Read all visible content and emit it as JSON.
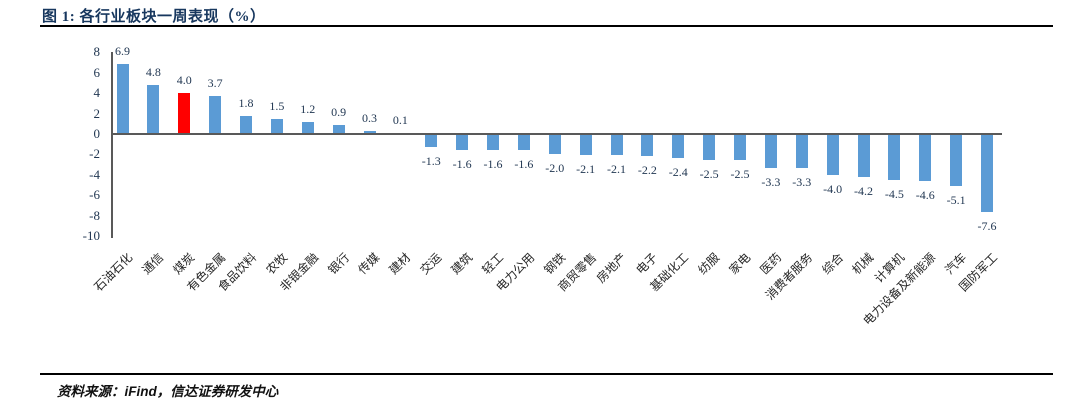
{
  "header": {
    "title": "图 1: 各行业板块一周表现（%）"
  },
  "footer": {
    "prefix": "资料来源：",
    "source": "iFind",
    "suffix": "，信达证券研发中心"
  },
  "chart_data": {
    "type": "bar",
    "title": "各行业板块一周表现（%）",
    "categories": [
      "石油石化",
      "通信",
      "煤炭",
      "有色金属",
      "食品饮料",
      "农牧",
      "非银金融",
      "银行",
      "传媒",
      "建材",
      "交运",
      "建筑",
      "轻工",
      "电力公用",
      "钢铁",
      "商贸零售",
      "房地产",
      "电子",
      "基础化工",
      "纺服",
      "家电",
      "医药",
      "消费者服务",
      "综合",
      "机械",
      "计算机",
      "电力设备及新能源",
      "汽车",
      "国防军工"
    ],
    "values": [
      6.9,
      4.8,
      4.0,
      3.7,
      1.8,
      1.5,
      1.2,
      0.9,
      0.3,
      0.1,
      -1.3,
      -1.6,
      -1.6,
      -1.6,
      -2.0,
      -2.1,
      -2.1,
      -2.2,
      -2.4,
      -2.5,
      -2.5,
      -3.3,
      -3.3,
      -4.0,
      -4.2,
      -4.5,
      -4.6,
      -5.1,
      -7.6
    ],
    "ylim": [
      -10,
      8
    ],
    "ytick_step": 2,
    "bar_color": "#5B9BD5",
    "highlight_index": 2,
    "highlight_color": "#FF0000",
    "axis_color": "#595959",
    "grid": false,
    "legend": false,
    "xlabel": "",
    "ylabel": ""
  }
}
